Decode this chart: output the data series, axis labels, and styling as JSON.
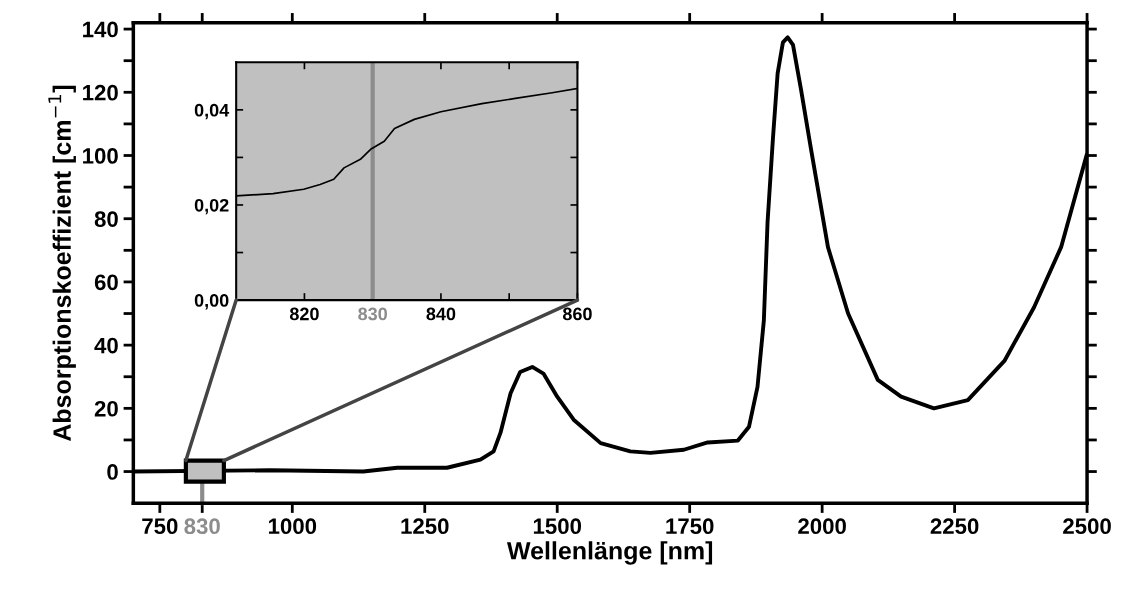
{
  "chart_data": [
    {
      "type": "line",
      "xlabel": "Wellenlänge [nm]",
      "ylabel": "Absorptionskoeffizient [cm$^{−1}$]",
      "series": [
        {
          "color": "#000000",
          "x": [
            700,
            958,
            1134,
            1198,
            1292,
            1355,
            1380,
            1393,
            1412,
            1430,
            1453,
            1474,
            1500,
            1531,
            1582,
            1638,
            1676,
            1739,
            1784,
            1841,
            1862,
            1878,
            1890,
            1897,
            1907,
            1916,
            1926,
            1935,
            1945,
            1960,
            1979,
            2011,
            2049,
            2105,
            2149,
            2211,
            2275,
            2344,
            2400,
            2451,
            2499
          ],
          "values": [
            0,
            0.4,
            0,
            1.2,
            1.2,
            3.8,
            6.4,
            12.3,
            24.8,
            31.5,
            33.1,
            31,
            23.7,
            16.4,
            9,
            6.4,
            5.9,
            6.9,
            9.2,
            9.8,
            14.2,
            26.8,
            47.8,
            79,
            105,
            126,
            135.8,
            137.4,
            135,
            121,
            102,
            71,
            50,
            29,
            23.7,
            20,
            22.6,
            35,
            52,
            71,
            100
          ]
        }
      ],
      "xlim": [
        700,
        2500
      ],
      "ylim": [
        -10,
        142
      ],
      "xticks": [
        750,
        830,
        1000,
        1250,
        1500,
        1750,
        2000,
        2250,
        2500
      ],
      "yticks": [
        0,
        {
          "value": 10,
          "label": null
        },
        20,
        {
          "value": 30,
          "label": null
        },
        40,
        {
          "value": 50,
          "label": null
        },
        60,
        {
          "value": 70,
          "label": null
        },
        80,
        {
          "value": 90,
          "label": null
        },
        100,
        {
          "value": 110,
          "label": null
        },
        120,
        {
          "value": 130,
          "label": null
        },
        140
      ],
      "grid": false,
      "legend": false,
      "marker": "none",
      "line_style": "solid"
    },
    {
      "type": "line",
      "series": [
        {
          "color": "#000000",
          "x": [
            810,
            815.4,
            819.9,
            822.3,
            824.3,
            825.8,
            828.2,
            829.7,
            831.7,
            833.2,
            836.1,
            840,
            846,
            850.9,
            856.3,
            860
          ],
          "values": [
            0.0219,
            0.0224,
            0.0233,
            0.0243,
            0.0254,
            0.0278,
            0.0296,
            0.0317,
            0.0334,
            0.0361,
            0.038,
            0.0396,
            0.0413,
            0.0424,
            0.0436,
            0.0445
          ]
        }
      ],
      "xlim": [
        810,
        860
      ],
      "ylim": [
        0,
        0.05
      ],
      "xticks": [
        820,
        830,
        840,
        {
          "value": 850,
          "label": null
        },
        860
      ],
      "yticks": [
        {
          "value": 0,
          "label": "0,00"
        },
        {
          "value": 0.01,
          "label": null
        },
        {
          "value": 0.02,
          "label": "0,02"
        },
        {
          "value": 0.03,
          "label": null
        },
        {
          "value": 0.04,
          "label": "0,04"
        }
      ],
      "ref_lines": [
        {
          "axis": "x",
          "value": 830,
          "color": "#8c8c8c"
        }
      ],
      "grid": false,
      "legend": false,
      "marker": "none",
      "line_style": "solid"
    }
  ]
}
